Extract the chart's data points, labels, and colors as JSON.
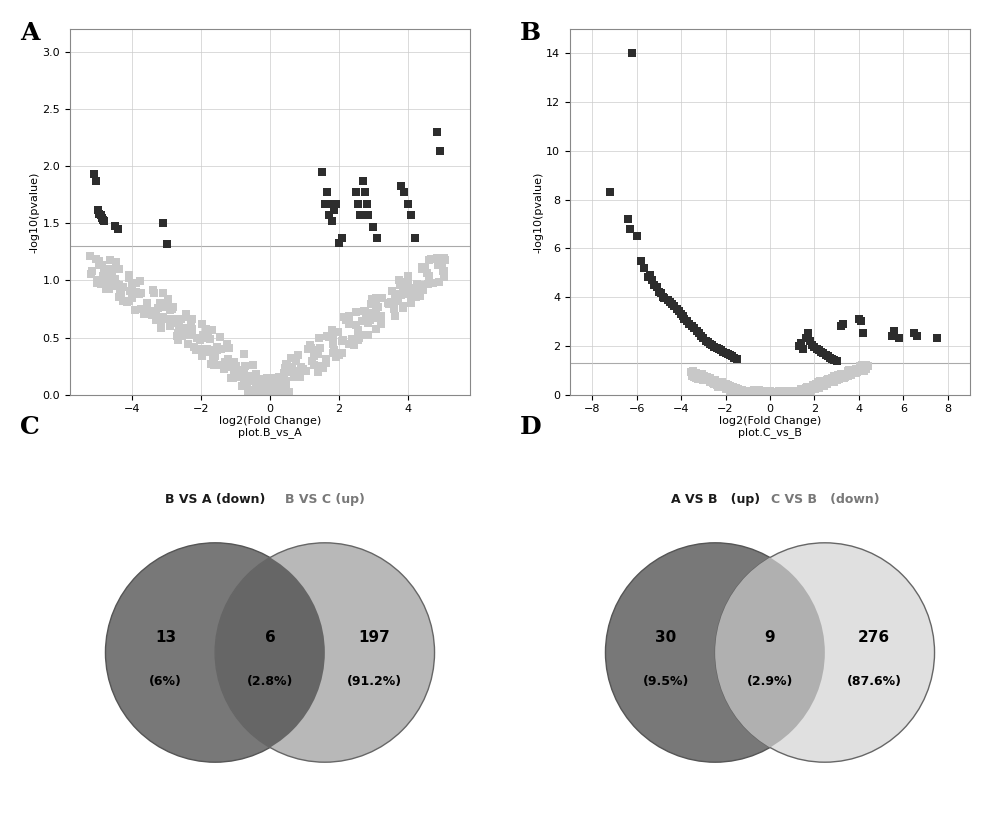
{
  "panel_A": {
    "title_label": "A",
    "xlabel": "log2(Fold Change)\nplot.B_vs_A",
    "ylabel": "-log10(pvalue)",
    "xlim": [
      -5.8,
      5.8
    ],
    "ylim": [
      0.0,
      3.2
    ],
    "hline_y": 1.3,
    "sig_color": "#2d2d2d",
    "nonsig_color": "#c8c8c8",
    "xticks": [
      -4,
      -2,
      0,
      2,
      4
    ],
    "yticks": [
      0.0,
      0.5,
      1.0,
      1.5,
      2.0,
      2.5,
      3.0
    ]
  },
  "panel_B": {
    "title_label": "B",
    "xlabel": "log2(Fold Change)\nplot.C_vs_B",
    "ylabel": "-log10(pvalue)",
    "xlim": [
      -9,
      9
    ],
    "ylim": [
      0,
      15
    ],
    "hline_y": 1.3,
    "sig_color": "#2d2d2d",
    "nonsig_color": "#c8c8c8",
    "xticks": [
      -8,
      -6,
      -4,
      -2,
      0,
      2,
      4,
      6,
      8
    ],
    "yticks": [
      0,
      2,
      4,
      6,
      8,
      10,
      12,
      14
    ]
  },
  "panel_C": {
    "title_label": "C",
    "set1_label": "B VS A (down)",
    "set2_label": "B VS C (up)",
    "set1_only": "13",
    "set1_only_pct": "(6%)",
    "intersection": "6",
    "intersection_pct": "(2.8%)",
    "set2_only": "197",
    "set2_only_pct": "(91.2%)",
    "set1_color": "#787878",
    "set2_color": "#b8b8b8",
    "intersection_color": "#666666",
    "set1_label_color": "#1a1a1a",
    "set2_label_color": "#787878"
  },
  "panel_D": {
    "title_label": "D",
    "set1_label": "A VS B   (up)",
    "set2_label": "C VS B   (down)",
    "set1_only": "30",
    "set1_only_pct": "(9.5%)",
    "intersection": "9",
    "intersection_pct": "(2.9%)",
    "set2_only": "276",
    "set2_only_pct": "(87.6%)",
    "set1_color": "#787878",
    "set2_color": "#e0e0e0",
    "intersection_color": "#b0b0b0",
    "set1_label_color": "#1a1a1a",
    "set2_label_color": "#787878"
  },
  "bg_color": "#ffffff",
  "marker": "s",
  "marker_size": 28
}
